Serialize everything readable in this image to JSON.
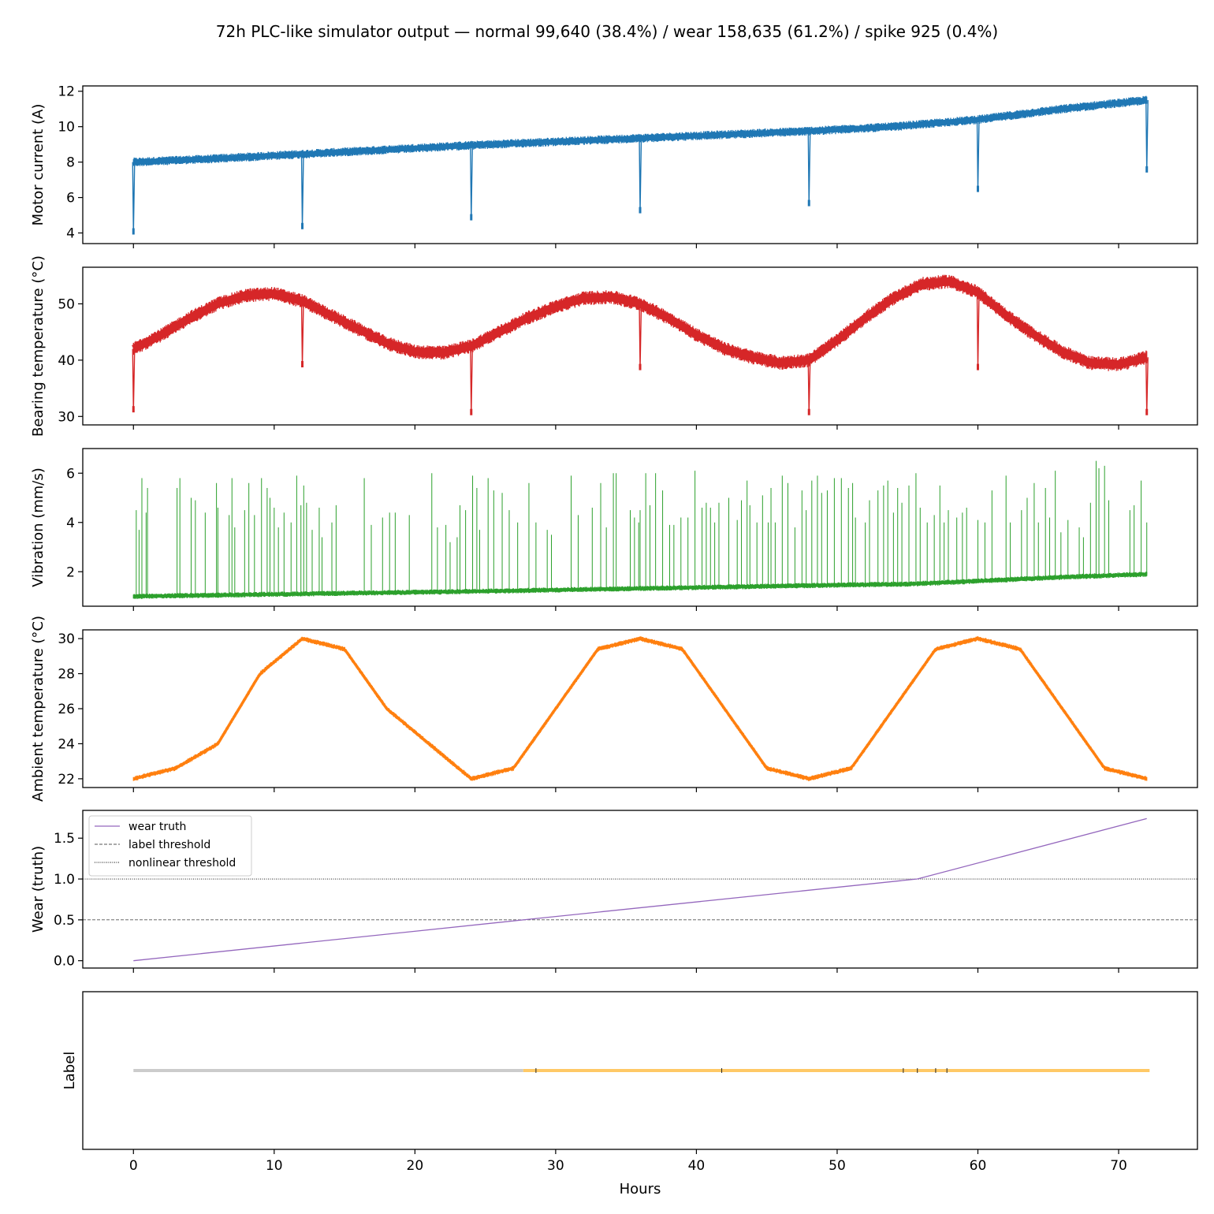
{
  "figure": {
    "title": "72h PLC-like simulator output  —  normal 99,640 (38.4%) / wear 158,635 (61.2%) / spike 925 (0.4%)",
    "xlabel": "Hours",
    "xticks": [
      0,
      10,
      20,
      30,
      40,
      50,
      60,
      70
    ],
    "xlim": [
      -3.6,
      75.6
    ]
  },
  "chart_data": [
    {
      "type": "line",
      "ylabel": "Motor current (A)",
      "ylim": [
        3.4,
        12.3
      ],
      "yticks": [
        4,
        6,
        8,
        10,
        12
      ],
      "color": "#1f77b4",
      "band": 0.28,
      "x": [
        0,
        6,
        12,
        18,
        24,
        30,
        36,
        42,
        48,
        54,
        60,
        66,
        72
      ],
      "y": [
        8.0,
        8.2,
        8.45,
        8.7,
        8.95,
        9.15,
        9.35,
        9.55,
        9.75,
        10.0,
        10.4,
        11.0,
        11.5
      ],
      "dips": [
        [
          0,
          4.0
        ],
        [
          12,
          4.3
        ],
        [
          24,
          4.8
        ],
        [
          36,
          5.2
        ],
        [
          48,
          5.6
        ],
        [
          60,
          6.4
        ],
        [
          72,
          7.5
        ]
      ]
    },
    {
      "type": "line",
      "ylabel": "Bearing temperature (°C)",
      "ylim": [
        28.5,
        56.5
      ],
      "yticks": [
        30,
        40,
        50
      ],
      "color": "#d62728",
      "band": 1.4,
      "x": [
        0,
        2,
        4,
        6,
        8,
        10,
        12,
        14,
        16,
        18,
        20,
        22,
        24,
        26,
        28,
        30,
        32,
        34,
        36,
        38,
        40,
        42,
        44,
        46,
        48,
        50,
        52,
        54,
        56,
        58,
        60,
        62,
        64,
        66,
        68,
        70,
        72
      ],
      "y": [
        42,
        44.5,
        47.5,
        50,
        51.5,
        51.8,
        50.5,
        48,
        45.5,
        43,
        41.5,
        41.3,
        42.5,
        45,
        47.5,
        49.5,
        51,
        51.2,
        50,
        47.5,
        44.5,
        42,
        40.5,
        39.5,
        40,
        43.5,
        47.5,
        51,
        53.5,
        54,
        52,
        48,
        44.5,
        41.5,
        39.5,
        39.2,
        40.5
      ],
      "dips": [
        [
          0,
          31
        ],
        [
          12,
          39
        ],
        [
          24,
          30.5
        ],
        [
          36,
          38.5
        ],
        [
          48,
          30.5
        ],
        [
          60,
          38.5
        ],
        [
          72,
          30.5
        ]
      ]
    },
    {
      "type": "line",
      "ylabel": "Vibration (mm/s)",
      "ylim": [
        0.6,
        7.0
      ],
      "yticks": [
        2,
        4,
        6
      ],
      "color": "#2ca02c",
      "band": 0.12,
      "x": [
        0,
        12,
        24,
        36,
        48,
        55,
        60,
        66,
        72
      ],
      "y": [
        1.0,
        1.1,
        1.2,
        1.32,
        1.44,
        1.5,
        1.62,
        1.78,
        1.9
      ],
      "spikes": [
        [
          0.2,
          4.5
        ],
        [
          0.4,
          3.7
        ],
        [
          0.6,
          5.8
        ],
        [
          0.9,
          4.4
        ],
        [
          1.0,
          5.4
        ],
        [
          3.1,
          5.4
        ],
        [
          3.3,
          5.8
        ],
        [
          4.1,
          5.0
        ],
        [
          4.4,
          4.9
        ],
        [
          5.1,
          4.4
        ],
        [
          5.9,
          5.6
        ],
        [
          6.0,
          4.6
        ],
        [
          6.8,
          4.3
        ],
        [
          7.0,
          5.8
        ],
        [
          7.2,
          3.8
        ],
        [
          7.9,
          4.5
        ],
        [
          8.2,
          5.6
        ],
        [
          8.6,
          4.3
        ],
        [
          9.1,
          5.8
        ],
        [
          9.5,
          5.4
        ],
        [
          9.7,
          5.0
        ],
        [
          10.0,
          4.6
        ],
        [
          10.3,
          3.8
        ],
        [
          10.7,
          4.4
        ],
        [
          11.2,
          4.0
        ],
        [
          11.6,
          5.9
        ],
        [
          11.9,
          4.7
        ],
        [
          12.1,
          5.5
        ],
        [
          12.3,
          4.8
        ],
        [
          12.7,
          3.7
        ],
        [
          13.2,
          4.6
        ],
        [
          13.4,
          3.4
        ],
        [
          14.1,
          4.0
        ],
        [
          14.4,
          4.7
        ],
        [
          16.4,
          5.8
        ],
        [
          16.9,
          3.9
        ],
        [
          17.7,
          4.2
        ],
        [
          18.2,
          4.4
        ],
        [
          18.6,
          4.4
        ],
        [
          19.6,
          4.3
        ],
        [
          21.2,
          6.0
        ],
        [
          21.6,
          3.8
        ],
        [
          22.2,
          3.9
        ],
        [
          22.5,
          3.2
        ],
        [
          23.0,
          3.4
        ],
        [
          23.2,
          4.7
        ],
        [
          23.6,
          4.5
        ],
        [
          24.1,
          5.9
        ],
        [
          24.4,
          5.4
        ],
        [
          24.6,
          3.7
        ],
        [
          25.2,
          5.8
        ],
        [
          25.6,
          5.3
        ],
        [
          26.2,
          5.2
        ],
        [
          26.7,
          4.5
        ],
        [
          27.3,
          4.0
        ],
        [
          28.1,
          5.6
        ],
        [
          28.6,
          4.0
        ],
        [
          29.4,
          3.7
        ],
        [
          29.7,
          3.5
        ],
        [
          31.1,
          5.9
        ],
        [
          31.6,
          4.3
        ],
        [
          32.6,
          4.6
        ],
        [
          33.2,
          5.6
        ],
        [
          33.6,
          3.8
        ],
        [
          34.1,
          6.0
        ],
        [
          34.3,
          6.0
        ],
        [
          35.3,
          4.5
        ],
        [
          35.6,
          4.2
        ],
        [
          35.9,
          4.0
        ],
        [
          36.0,
          4.5
        ],
        [
          36.4,
          6.0
        ],
        [
          36.7,
          4.7
        ],
        [
          37.1,
          6.0
        ],
        [
          37.6,
          5.3
        ],
        [
          38.1,
          3.9
        ],
        [
          38.4,
          3.9
        ],
        [
          38.9,
          4.2
        ],
        [
          39.4,
          4.2
        ],
        [
          39.9,
          6.1
        ],
        [
          40.4,
          4.6
        ],
        [
          40.7,
          4.8
        ],
        [
          41.0,
          4.6
        ],
        [
          41.3,
          4.0
        ],
        [
          41.6,
          4.8
        ],
        [
          42.3,
          5.0
        ],
        [
          42.9,
          4.1
        ],
        [
          43.2,
          4.9
        ],
        [
          43.6,
          5.7
        ],
        [
          43.8,
          4.7
        ],
        [
          44.3,
          4.0
        ],
        [
          44.7,
          5.1
        ],
        [
          45.1,
          4.0
        ],
        [
          45.3,
          5.4
        ],
        [
          45.6,
          4.0
        ],
        [
          46.1,
          5.9
        ],
        [
          46.5,
          5.6
        ],
        [
          47.0,
          3.8
        ],
        [
          47.5,
          5.3
        ],
        [
          47.8,
          4.5
        ],
        [
          48.2,
          5.7
        ],
        [
          48.6,
          5.9
        ],
        [
          48.9,
          5.2
        ],
        [
          49.3,
          5.3
        ],
        [
          49.8,
          5.8
        ],
        [
          50.3,
          5.8
        ],
        [
          50.8,
          5.4
        ],
        [
          51.1,
          5.6
        ],
        [
          51.3,
          4.2
        ],
        [
          52.0,
          4.0
        ],
        [
          52.3,
          4.9
        ],
        [
          52.9,
          5.3
        ],
        [
          53.3,
          5.5
        ],
        [
          53.6,
          5.7
        ],
        [
          54.0,
          4.4
        ],
        [
          54.3,
          5.4
        ],
        [
          54.6,
          4.8
        ],
        [
          55.1,
          5.5
        ],
        [
          55.6,
          6.0
        ],
        [
          55.9,
          4.6
        ],
        [
          56.4,
          4.0
        ],
        [
          56.9,
          4.3
        ],
        [
          57.3,
          5.5
        ],
        [
          57.6,
          4.0
        ],
        [
          57.9,
          4.5
        ],
        [
          58.5,
          4.2
        ],
        [
          58.9,
          4.4
        ],
        [
          59.2,
          4.6
        ],
        [
          60.0,
          4.1
        ],
        [
          60.5,
          4.0
        ],
        [
          61.0,
          5.3
        ],
        [
          62.0,
          5.9
        ],
        [
          62.3,
          4.0
        ],
        [
          63.1,
          4.5
        ],
        [
          63.5,
          5.0
        ],
        [
          64.0,
          5.6
        ],
        [
          64.3,
          4.0
        ],
        [
          64.8,
          5.4
        ],
        [
          65.1,
          4.2
        ],
        [
          65.5,
          6.1
        ],
        [
          65.9,
          3.6
        ],
        [
          66.4,
          4.1
        ],
        [
          67.2,
          3.8
        ],
        [
          67.5,
          3.4
        ],
        [
          68.0,
          4.8
        ],
        [
          68.4,
          6.5
        ],
        [
          68.6,
          6.2
        ],
        [
          69.0,
          6.3
        ],
        [
          69.3,
          4.9
        ],
        [
          70.8,
          4.5
        ],
        [
          71.1,
          4.7
        ],
        [
          71.6,
          5.7
        ],
        [
          72.0,
          4.0
        ]
      ]
    },
    {
      "type": "line",
      "ylabel": "Ambient temperature (°C)",
      "ylim": [
        21.5,
        30.5
      ],
      "yticks": [
        22,
        24,
        26,
        28,
        30
      ],
      "color": "#ff7f0e",
      "band": 0.16,
      "x": [
        0,
        3,
        6,
        9,
        12,
        15,
        18,
        21,
        24,
        27,
        30,
        33,
        36,
        39,
        42,
        45,
        48,
        51,
        54,
        57,
        60,
        63,
        66,
        69,
        72
      ],
      "y": [
        22.0,
        22.6,
        24.0,
        28.0,
        30.0,
        29.4,
        26.0,
        24.0,
        22.0,
        22.6,
        26.0,
        29.4,
        30.0,
        29.4,
        26.0,
        22.6,
        22.0,
        22.6,
        26.0,
        29.4,
        30.0,
        29.4,
        26.0,
        22.6,
        22.0
      ]
    },
    {
      "type": "line",
      "ylabel": "Wear (truth)",
      "ylim": [
        -0.09,
        1.84
      ],
      "yticks": [
        0.0,
        0.5,
        1.0,
        1.5
      ],
      "ytick_labels": [
        "0.0",
        "0.5",
        "1.0",
        "1.5"
      ],
      "series": [
        {
          "name": "wear truth",
          "color": "#9467bd",
          "x": [
            0,
            27.7,
            55.7,
            72
          ],
          "y": [
            0.0,
            0.5,
            1.0,
            1.74
          ]
        }
      ],
      "hlines": [
        {
          "name": "label threshold",
          "y": 0.5,
          "style": "dashed",
          "color": "#555555"
        },
        {
          "name": "nonlinear threshold",
          "y": 1.0,
          "style": "dotted",
          "color": "#000000"
        }
      ],
      "legend": "top-left"
    },
    {
      "type": "line",
      "ylabel": "Label",
      "ylim": [
        0,
        1
      ],
      "yticks": [],
      "segments": [
        {
          "label": "normal",
          "color": "#cccccc",
          "from": 0,
          "to": 27.7
        },
        {
          "label": "wear",
          "color": "#ffc966",
          "from": 27.7,
          "to": 72.2
        }
      ],
      "spikes": [
        28.6,
        41.8,
        54.7,
        55.7,
        57.0,
        57.8
      ],
      "spike_color": "#222222"
    }
  ]
}
